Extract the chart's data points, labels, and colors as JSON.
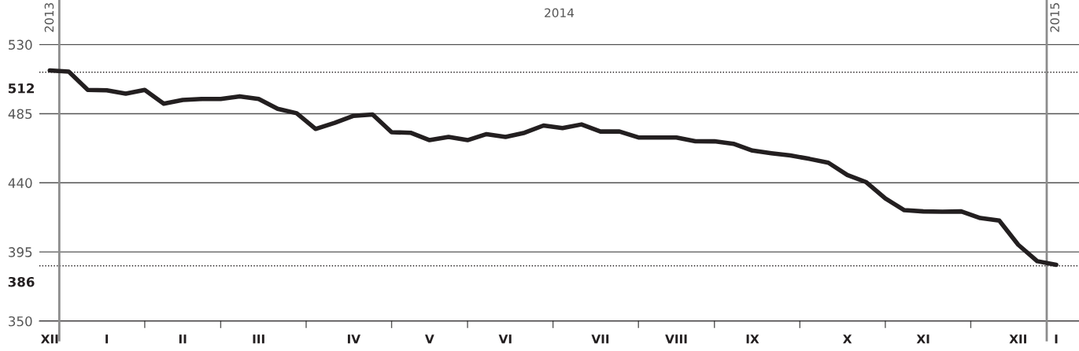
{
  "chart_data": {
    "type": "line",
    "categories": [
      "XII",
      null,
      null,
      "I",
      null,
      null,
      null,
      "II",
      null,
      null,
      null,
      "III",
      null,
      null,
      null,
      null,
      "IV",
      null,
      null,
      null,
      "V",
      null,
      null,
      null,
      "VI",
      null,
      null,
      null,
      null,
      "VII",
      null,
      null,
      null,
      "VIII",
      null,
      null,
      null,
      "IX",
      null,
      null,
      null,
      null,
      "X",
      null,
      null,
      null,
      "XI",
      null,
      null,
      null,
      null,
      "XII",
      null,
      "I"
    ],
    "series": [
      {
        "color": "#231f20",
        "values": [
          513.2,
          512.4,
          500.5,
          500.2,
          498.0,
          500.5,
          491.5,
          493.9,
          494.6,
          494.6,
          496.3,
          494.6,
          488.2,
          485.3,
          475.1,
          479.0,
          483.6,
          484.5,
          472.9,
          472.6,
          467.8,
          469.9,
          467.8,
          471.7,
          469.9,
          472.6,
          477.3,
          475.6,
          478.0,
          473.4,
          473.4,
          469.5,
          469.5,
          469.5,
          467.1,
          467.0,
          465.4,
          461.0,
          459.3,
          457.8,
          455.6,
          453.1,
          445.1,
          440.4,
          429.8,
          422.2,
          421.4,
          421.2,
          421.4,
          417.1,
          415.4,
          399.7,
          389.0,
          386.6
        ]
      }
    ],
    "ylim": [
      350,
      559
    ],
    "yticks": [
      350,
      395,
      440,
      485,
      530
    ],
    "grid": "y",
    "line_style": "solid",
    "marker": "none",
    "ref_lines": [
      {
        "axis": "y",
        "value": 512,
        "label": "512",
        "line_style": "dotted",
        "color": "#231f20"
      },
      {
        "axis": "y",
        "value": 386,
        "label": "386",
        "line_style": "dotted",
        "color": "#231f20"
      }
    ],
    "annotations": [
      "2013",
      "2014",
      "2015"
    ]
  }
}
